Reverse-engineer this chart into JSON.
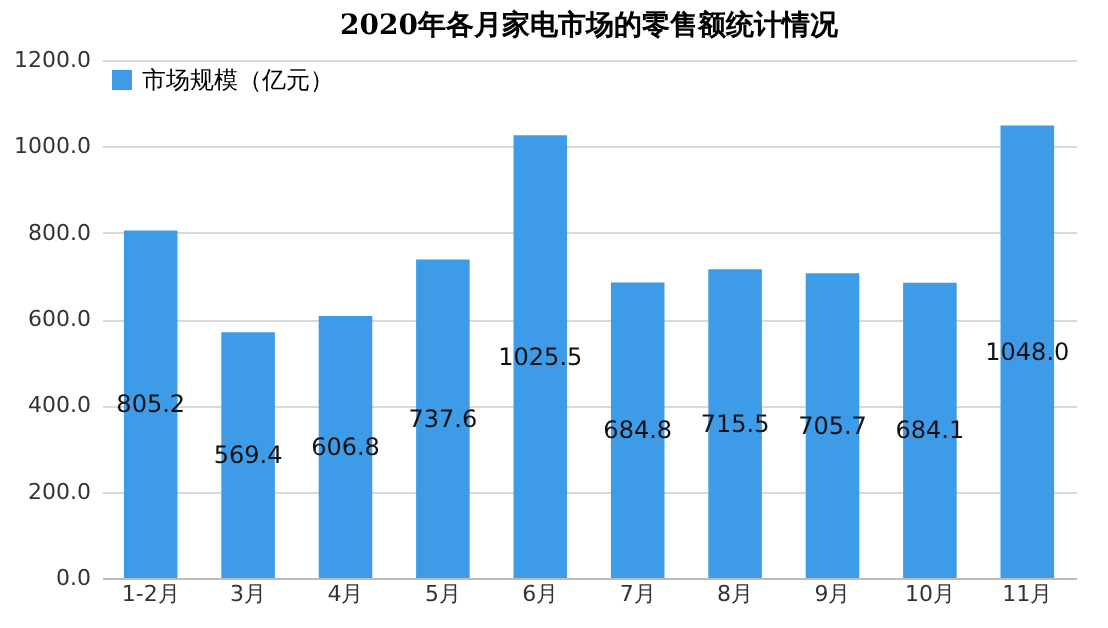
{
  "chart_data": {
    "type": "bar",
    "title": "2020年各月家电市场的零售额统计情况",
    "categories": [
      "1-2月",
      "3月",
      "4月",
      "5月",
      "6月",
      "7月",
      "8月",
      "9月",
      "10月",
      "11月"
    ],
    "series": [
      {
        "name": "市场规模（亿元）",
        "color": "#3e9be8",
        "values": [
          805.2,
          569.4,
          606.8,
          737.6,
          1025.5,
          684.8,
          715.5,
          705.7,
          684.1,
          1048.0
        ]
      }
    ],
    "value_labels": [
      "805.2",
      "569.4",
      "606.8",
      "737.6",
      "1025.5",
      "684.8",
      "715.5",
      "705.7",
      "684.1",
      "1048.0"
    ],
    "ylim": [
      0,
      1200
    ],
    "yticks": [
      {
        "value": 0,
        "label": "0.0"
      },
      {
        "value": 200,
        "label": "200.0"
      },
      {
        "value": 400,
        "label": "400.0"
      },
      {
        "value": 600,
        "label": "600.0"
      },
      {
        "value": 800,
        "label": "800.0"
      },
      {
        "value": 1000,
        "label": "1000.0"
      },
      {
        "value": 1200,
        "label": "1200.0"
      }
    ],
    "grid": "y",
    "legend": "top left"
  }
}
